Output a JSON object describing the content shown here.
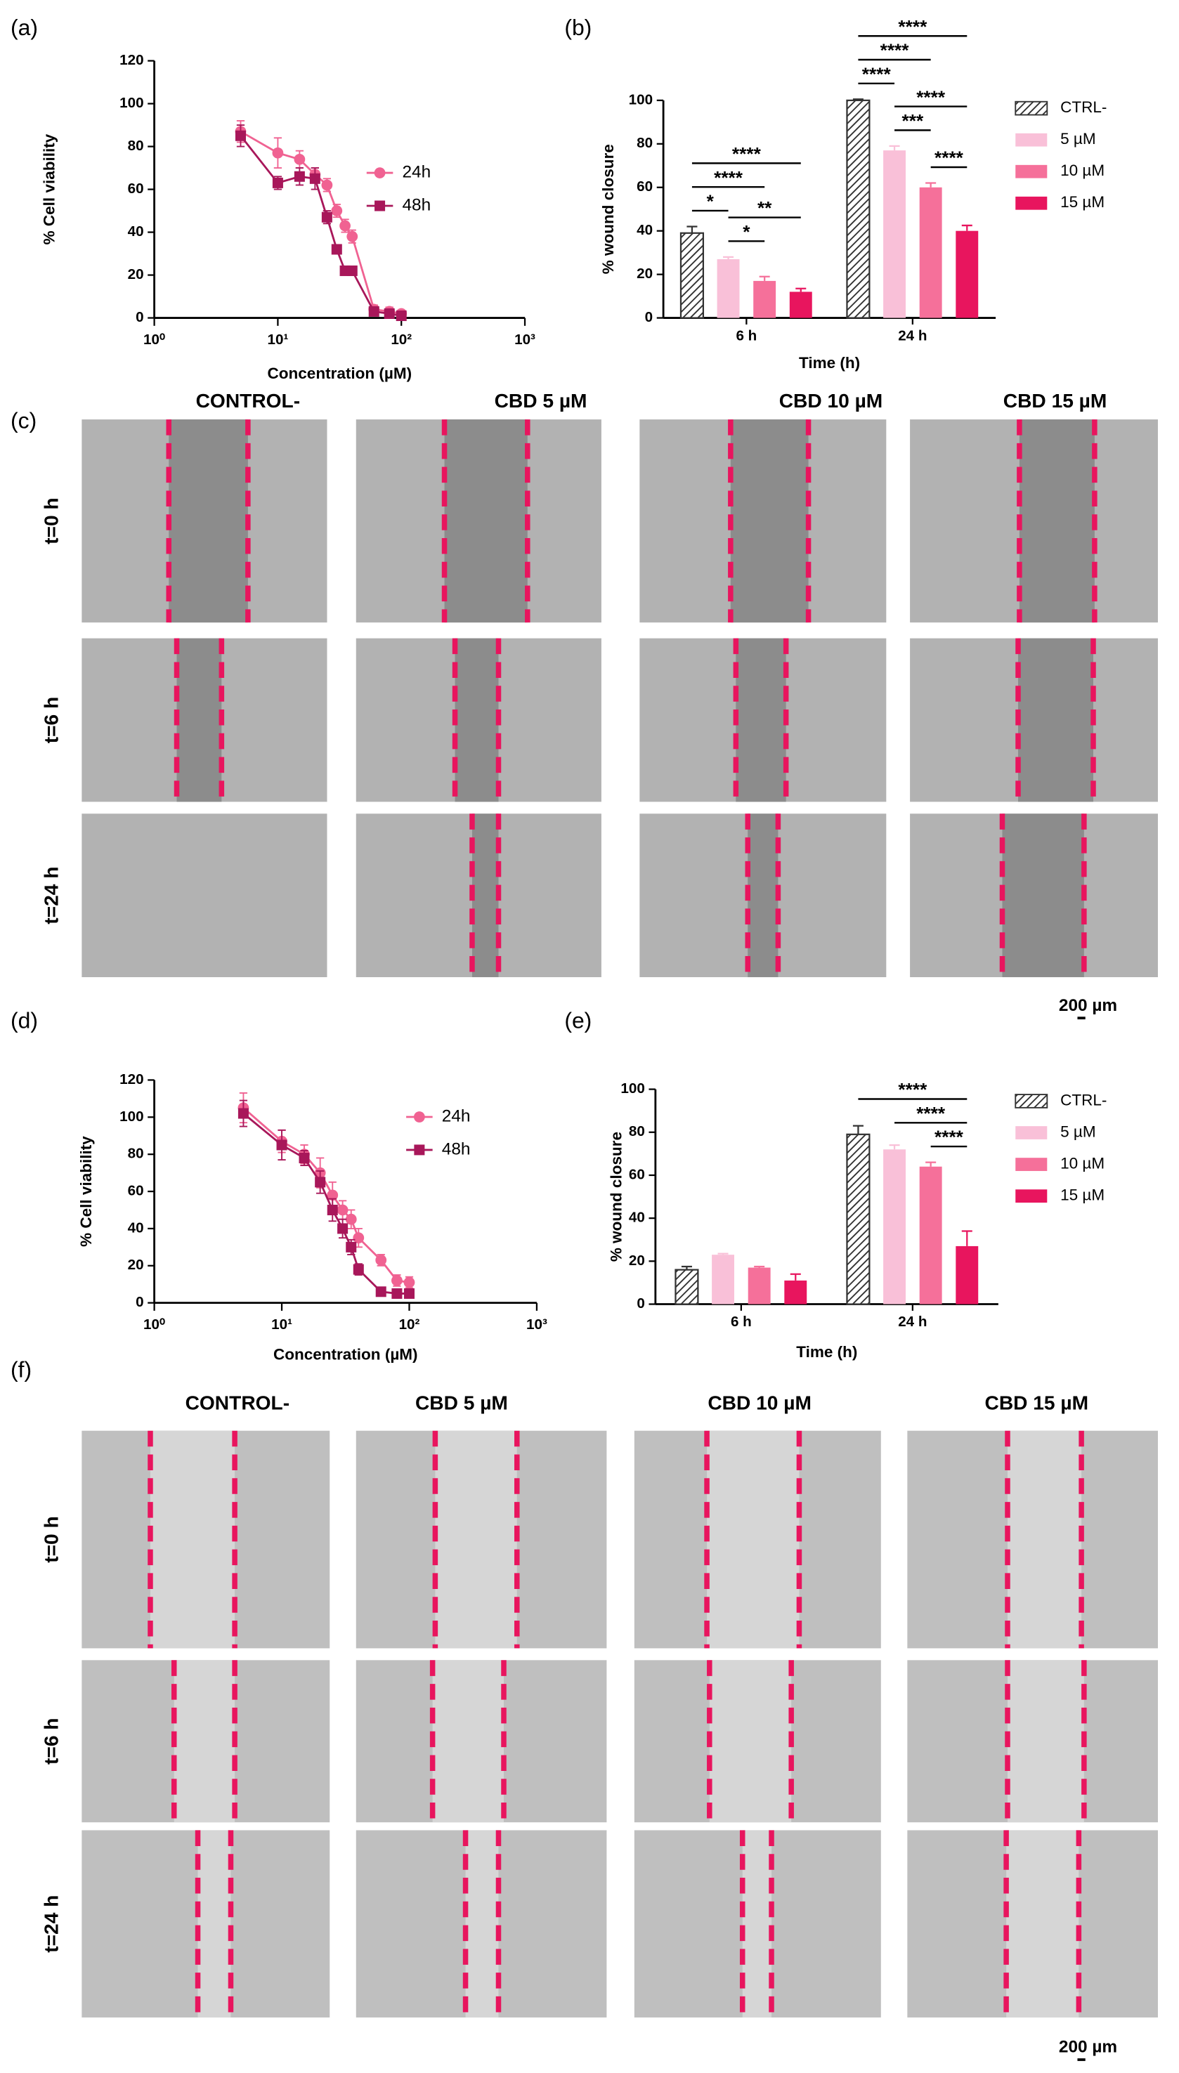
{
  "panel_labels": [
    "(a)",
    "(b)",
    "(c)",
    "(d)",
    "(e)",
    "(f)"
  ],
  "chart_data": [
    {
      "type": "dose_response",
      "xlabel": "Concentration (µM)",
      "ylabel": "% Cell viability",
      "log_x": true,
      "xlim": [
        1,
        1000
      ],
      "xticks": [
        {
          "value": 1,
          "label": "10⁰"
        },
        {
          "value": 10,
          "label": "10¹"
        },
        {
          "value": 100,
          "label": "10²"
        },
        {
          "value": 1000,
          "label": "10³"
        }
      ],
      "ylim": [
        0,
        120
      ],
      "yticks": [
        0,
        20,
        40,
        60,
        80,
        100,
        120
      ],
      "legend": "right",
      "series": [
        {
          "name": "24h",
          "color": "#f06292",
          "marker": "circle",
          "x": [
            5,
            10,
            15,
            20,
            25,
            30,
            35,
            40,
            60,
            80,
            100
          ],
          "values": [
            87,
            77,
            74,
            67,
            62,
            50,
            43,
            38,
            4,
            3,
            2
          ],
          "errors": [
            5,
            7,
            4,
            3,
            3,
            3,
            3,
            3,
            2,
            2,
            1
          ]
        },
        {
          "name": "48h",
          "color": "#a8175a",
          "marker": "square",
          "x": [
            5,
            10,
            15,
            20,
            25,
            30,
            35,
            40,
            60,
            80,
            100
          ],
          "values": [
            85,
            63,
            66,
            65,
            47,
            32,
            22,
            22,
            3,
            2,
            1
          ],
          "errors": [
            5,
            3,
            4,
            5,
            3,
            2,
            2,
            2,
            1,
            1,
            1
          ]
        }
      ]
    },
    {
      "type": "bar",
      "xlabel": "Time (h)",
      "ylabel": "% wound closure",
      "categories": [
        "6 h",
        "24 h"
      ],
      "ylim": [
        0,
        100
      ],
      "yticks": [
        0,
        20,
        40,
        60,
        80,
        100
      ],
      "legend": "right",
      "series": [
        {
          "name": "CTRL-",
          "color": "#333333",
          "hatch": true,
          "values": [
            39,
            100
          ],
          "errors": [
            3,
            0.5
          ]
        },
        {
          "name": "5 µM",
          "color": "#f9c0d8",
          "values": [
            27,
            77
          ],
          "errors": [
            1,
            2
          ]
        },
        {
          "name": "10 µM",
          "color": "#f5709a",
          "values": [
            17,
            60
          ],
          "errors": [
            2,
            2
          ]
        },
        {
          "name": "15 µM",
          "color": "#e8155e",
          "values": [
            12,
            40
          ],
          "errors": [
            1.5,
            2.5
          ]
        }
      ],
      "significance": [
        {
          "category": 0,
          "between": [
            1,
            2
          ],
          "label": "*"
        },
        {
          "category": 0,
          "between": [
            0,
            1
          ],
          "label": "*"
        },
        {
          "category": 0,
          "between": [
            1,
            3
          ],
          "label": "**"
        },
        {
          "category": 0,
          "between": [
            0,
            2
          ],
          "label": "****"
        },
        {
          "category": 0,
          "between": [
            0,
            3
          ],
          "label": "****"
        },
        {
          "category": 1,
          "between": [
            2,
            3
          ],
          "label": "****"
        },
        {
          "category": 1,
          "between": [
            1,
            2
          ],
          "label": "***"
        },
        {
          "category": 1,
          "between": [
            0,
            1
          ],
          "label": "****"
        },
        {
          "category": 1,
          "between": [
            1,
            3
          ],
          "label": "****"
        },
        {
          "category": 1,
          "between": [
            0,
            2
          ],
          "label": "****"
        },
        {
          "category": 1,
          "between": [
            0,
            3
          ],
          "label": "****"
        }
      ]
    },
    {
      "type": "dose_response",
      "xlabel": "Concentration (µM)",
      "ylabel": "% Cell viability",
      "log_x": true,
      "xlim": [
        1,
        1000
      ],
      "xticks": [
        {
          "value": 1,
          "label": "10⁰"
        },
        {
          "value": 10,
          "label": "10¹"
        },
        {
          "value": 100,
          "label": "10²"
        },
        {
          "value": 1000,
          "label": "10³"
        }
      ],
      "ylim": [
        0,
        120
      ],
      "yticks": [
        0,
        20,
        40,
        60,
        80,
        100,
        120
      ],
      "legend": "right",
      "series": [
        {
          "name": "24h",
          "color": "#f06292",
          "marker": "circle",
          "x": [
            5,
            10,
            15,
            20,
            25,
            30,
            35,
            40,
            60,
            80,
            100
          ],
          "values": [
            105,
            87,
            80,
            70,
            58,
            50,
            45,
            35,
            23,
            12,
            11
          ],
          "errors": [
            8,
            6,
            5,
            8,
            7,
            5,
            5,
            5,
            3,
            3,
            3
          ]
        },
        {
          "name": "48h",
          "color": "#a8175a",
          "marker": "square",
          "x": [
            5,
            10,
            15,
            20,
            25,
            30,
            35,
            40,
            60,
            80,
            100
          ],
          "values": [
            102,
            85,
            78,
            65,
            50,
            40,
            30,
            18,
            6,
            5,
            5
          ],
          "errors": [
            7,
            8,
            4,
            6,
            6,
            5,
            4,
            3,
            2,
            2,
            1
          ]
        }
      ]
    },
    {
      "type": "bar",
      "xlabel": "Time (h)",
      "ylabel": "% wound closure",
      "categories": [
        "6 h",
        "24 h"
      ],
      "ylim": [
        0,
        100
      ],
      "yticks": [
        0,
        20,
        40,
        60,
        80,
        100
      ],
      "legend": "right",
      "series": [
        {
          "name": "CTRL-",
          "color": "#333333",
          "hatch": true,
          "values": [
            16,
            79
          ],
          "errors": [
            1.5,
            4
          ]
        },
        {
          "name": "5 µM",
          "color": "#f9c0d8",
          "values": [
            23,
            72
          ],
          "errors": [
            0.5,
            2
          ]
        },
        {
          "name": "10 µM",
          "color": "#f5709a",
          "values": [
            17,
            64
          ],
          "errors": [
            0.5,
            2
          ]
        },
        {
          "name": "15 µM",
          "color": "#e8155e",
          "values": [
            11,
            27
          ],
          "errors": [
            3,
            7
          ]
        }
      ],
      "significance": [
        {
          "category": 1,
          "between": [
            2,
            3
          ],
          "label": "****"
        },
        {
          "category": 1,
          "between": [
            1,
            3
          ],
          "label": "****"
        },
        {
          "category": 1,
          "between": [
            0,
            3
          ],
          "label": "****"
        }
      ]
    }
  ],
  "image_grids": [
    {
      "columns": [
        "CONTROL-",
        "CBD 5 µM",
        "CBD 10 µM",
        "CBD 15 µM"
      ],
      "rows": [
        "t=0 h",
        "t=6 h",
        "t=24 h"
      ],
      "scale_bar": "200 µm"
    },
    {
      "columns": [
        "CONTROL-",
        "CBD 5 µM",
        "CBD 10 µM",
        "CBD 15 µM"
      ],
      "rows": [
        "t=0 h",
        "t=6 h",
        "t=24 h"
      ],
      "scale_bar": "200 µm"
    }
  ]
}
